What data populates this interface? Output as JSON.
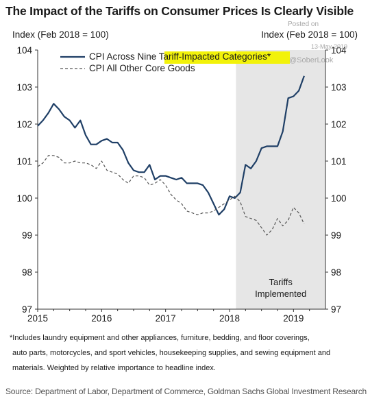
{
  "chart_data": {
    "type": "line",
    "title": "The Impact of the Tariffs on Consumer Prices Is Clearly Visible",
    "ylabel_left": "Index (Feb 2018 = 100)",
    "ylabel_right": "Index (Feb 2018 = 100)",
    "ylim": [
      97,
      104
    ],
    "yticks": [
      "97",
      "98",
      "99",
      "100",
      "101",
      "102",
      "103",
      "104"
    ],
    "xlim": [
      2015.0,
      2019.5
    ],
    "xticks": [
      "2015",
      "2016",
      "2017",
      "2018",
      "2019"
    ],
    "grid": false,
    "legend_position": "top-left",
    "legend_highlight": "Tariff-Impacted Categories*",
    "colors": {
      "cpi_tariff": "#1f3f66",
      "cpi_other": "#555555",
      "shade": "#e6e6e6",
      "highlight": "#f2f20a"
    },
    "shaded_region": {
      "x0": 2018.1,
      "x1": 2019.5,
      "label_line1": "Tariffs",
      "label_line2": "Implemented"
    },
    "series": [
      {
        "name": "CPI Across Nine Tariff-Impacted Categories*",
        "style": "solid",
        "x": [
          2015.0,
          2015.083,
          2015.167,
          2015.25,
          2015.333,
          2015.417,
          2015.5,
          2015.583,
          2015.667,
          2015.75,
          2015.833,
          2015.917,
          2016.0,
          2016.083,
          2016.167,
          2016.25,
          2016.333,
          2016.417,
          2016.5,
          2016.583,
          2016.667,
          2016.75,
          2016.833,
          2016.917,
          2017.0,
          2017.083,
          2017.167,
          2017.25,
          2017.333,
          2017.417,
          2017.5,
          2017.583,
          2017.667,
          2017.75,
          2017.833,
          2017.917,
          2018.0,
          2018.083,
          2018.167,
          2018.25,
          2018.333,
          2018.417,
          2018.5,
          2018.583,
          2018.667,
          2018.75,
          2018.833,
          2018.917,
          2019.0,
          2019.083,
          2019.167
        ],
        "values": [
          101.95,
          102.1,
          102.3,
          102.55,
          102.4,
          102.2,
          102.1,
          101.9,
          102.1,
          101.7,
          101.45,
          101.45,
          101.55,
          101.6,
          101.5,
          101.5,
          101.3,
          100.95,
          100.75,
          100.7,
          100.7,
          100.9,
          100.5,
          100.6,
          100.6,
          100.55,
          100.5,
          100.55,
          100.4,
          100.4,
          100.4,
          100.35,
          100.15,
          99.85,
          99.55,
          99.7,
          100.05,
          100.0,
          100.15,
          100.9,
          100.8,
          101.0,
          101.35,
          101.4,
          101.4,
          101.4,
          101.8,
          102.7,
          102.75,
          102.9,
          103.3
        ]
      },
      {
        "name": "CPI All Other Core Goods",
        "style": "dashed",
        "x": [
          2015.0,
          2015.083,
          2015.167,
          2015.25,
          2015.333,
          2015.417,
          2015.5,
          2015.583,
          2015.667,
          2015.75,
          2015.833,
          2015.917,
          2016.0,
          2016.083,
          2016.167,
          2016.25,
          2016.333,
          2016.417,
          2016.5,
          2016.583,
          2016.667,
          2016.75,
          2016.833,
          2016.917,
          2017.0,
          2017.083,
          2017.167,
          2017.25,
          2017.333,
          2017.417,
          2017.5,
          2017.583,
          2017.667,
          2017.75,
          2017.833,
          2017.917,
          2018.0,
          2018.083,
          2018.167,
          2018.25,
          2018.333,
          2018.417,
          2018.5,
          2018.583,
          2018.667,
          2018.75,
          2018.833,
          2018.917,
          2019.0,
          2019.083,
          2019.167
        ],
        "values": [
          100.85,
          100.95,
          101.15,
          101.15,
          101.1,
          100.95,
          100.95,
          101.0,
          100.95,
          100.95,
          100.9,
          100.8,
          101.0,
          100.75,
          100.7,
          100.65,
          100.5,
          100.4,
          100.6,
          100.6,
          100.55,
          100.35,
          100.4,
          100.5,
          100.35,
          100.1,
          99.95,
          99.85,
          99.65,
          99.6,
          99.55,
          99.6,
          99.6,
          99.65,
          99.75,
          99.85,
          99.95,
          100.05,
          99.9,
          99.5,
          99.45,
          99.4,
          99.2,
          99.0,
          99.15,
          99.45,
          99.25,
          99.4,
          99.75,
          99.6,
          99.3
        ]
      }
    ]
  },
  "watermark": {
    "posted": "Posted on",
    "date": "13-May-2019",
    "handle": "@SoberLook"
  },
  "footnote": [
    "*Includes laundry equipment and other appliances, furniture, bedding, and floor coverings,",
    "auto parts, motorcycles, and sport vehicles, housekeeping supplies, and sewing equipment and",
    "materials. Weighted by relative importance to headline index."
  ],
  "source": "Source: Department of Labor, Department of Commerce, Goldman Sachs Global Investment Research"
}
